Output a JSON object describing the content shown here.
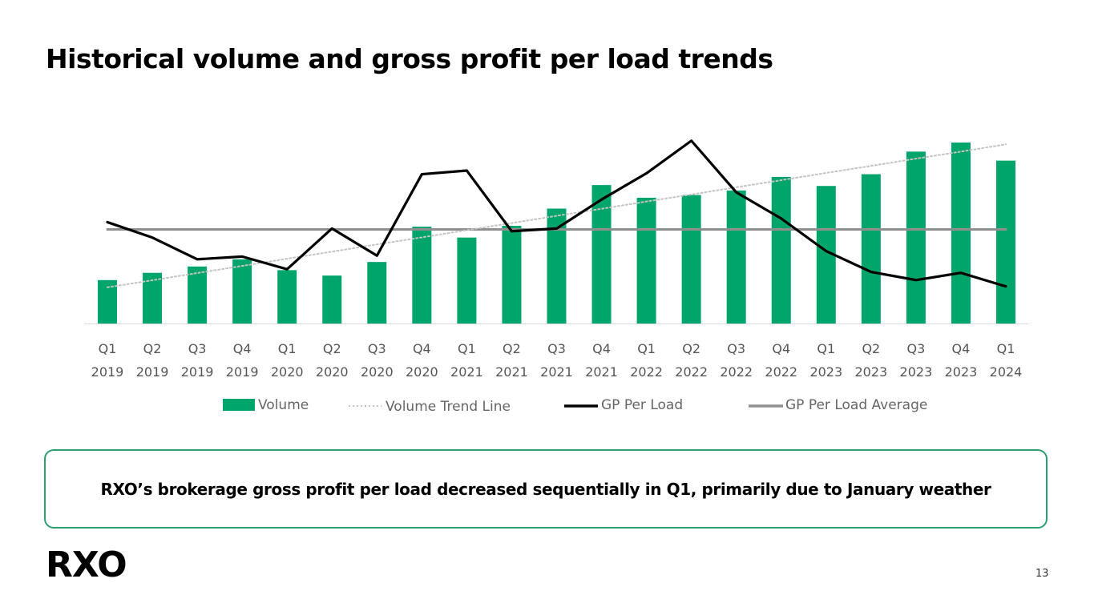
{
  "page": {
    "title": "Historical volume and gross profit per load trends",
    "callout": "RXO’s brokerage gross profit per load decreased sequentially in Q1, primarily due to January weather",
    "logo": "RXO",
    "page_number": "13"
  },
  "colors": {
    "volume": "#00a56c",
    "trend": "#c4c4c4",
    "gp": "#000000",
    "avg": "#8f8f8f",
    "callout_border": "#2aa06e"
  },
  "chart_data": {
    "type": "bar",
    "title": "",
    "xlabel": "",
    "ylabel": "",
    "categories": [
      [
        "Q1",
        "2019"
      ],
      [
        "Q2",
        "2019"
      ],
      [
        "Q3",
        "2019"
      ],
      [
        "Q4",
        "2019"
      ],
      [
        "Q1",
        "2020"
      ],
      [
        "Q2",
        "2020"
      ],
      [
        "Q3",
        "2020"
      ],
      [
        "Q4",
        "2020"
      ],
      [
        "Q1",
        "2021"
      ],
      [
        "Q2",
        "2021"
      ],
      [
        "Q3",
        "2021"
      ],
      [
        "Q4",
        "2021"
      ],
      [
        "Q1",
        "2022"
      ],
      [
        "Q2",
        "2022"
      ],
      [
        "Q3",
        "2022"
      ],
      [
        "Q4",
        "2022"
      ],
      [
        "Q1",
        "2023"
      ],
      [
        "Q2",
        "2023"
      ],
      [
        "Q3",
        "2023"
      ],
      [
        "Q4",
        "2023"
      ],
      [
        "Q1",
        "2024"
      ]
    ],
    "ylim": [
      0,
      100
    ],
    "series": [
      {
        "name": "Volume",
        "type": "bar",
        "values": [
          24,
          28,
          31.5,
          35.5,
          29.5,
          26.5,
          34,
          53.5,
          47.5,
          54,
          63.5,
          76.5,
          69.5,
          71,
          73.5,
          81,
          76,
          82.5,
          95,
          100,
          90
        ]
      },
      {
        "name": "Volume Trend Line",
        "type": "line",
        "style": "dotted",
        "values": [
          20,
          23.9,
          27.9,
          31.8,
          35.8,
          39.7,
          43.7,
          47.6,
          51.6,
          55.5,
          59.5,
          63.4,
          67.4,
          71.3,
          75.3,
          79.2,
          83.2,
          87.1,
          91.1,
          95,
          99
        ]
      },
      {
        "name": "GP Per Load",
        "type": "line",
        "values": [
          56,
          47.5,
          35.5,
          37,
          30,
          52.5,
          37.5,
          82.5,
          84.5,
          51,
          52.5,
          68.5,
          83,
          101,
          72.5,
          58,
          40,
          28.5,
          24,
          28,
          20.5
        ]
      },
      {
        "name": "GP Per Load Average",
        "type": "line",
        "values": [
          52,
          52,
          52,
          52,
          52,
          52,
          52,
          52,
          52,
          52,
          52,
          52,
          52,
          52,
          52,
          52,
          52,
          52,
          52,
          52,
          52
        ]
      }
    ],
    "legend": [
      "Volume",
      "Volume Trend Line",
      "GP Per Load",
      "GP Per Load Average"
    ],
    "legend_position": "bottom",
    "grid": false
  }
}
